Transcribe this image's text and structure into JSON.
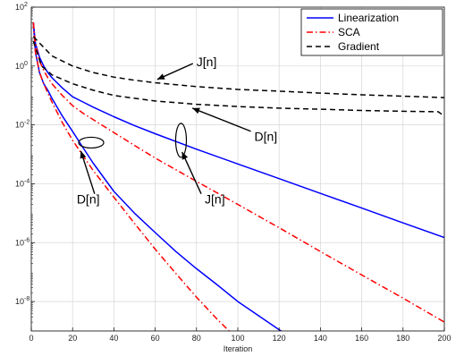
{
  "chart_data": {
    "type": "line",
    "xlabel": "Iteration",
    "ylabel": "",
    "yscale": "log",
    "xlim": [
      0,
      200
    ],
    "ylim": [
      1e-09,
      100
    ],
    "grid": true,
    "legend_position": "top-right",
    "x_ticks": [
      "0",
      "20",
      "40",
      "60",
      "80",
      "100",
      "120",
      "140",
      "160",
      "180",
      "200"
    ],
    "y_ticks": [
      {
        "value": 100,
        "mantissa": "10",
        "exponent": "2"
      },
      {
        "value": 1,
        "mantissa": "10",
        "exponent": "0"
      },
      {
        "value": 0.01,
        "mantissa": "10",
        "exponent": "-2"
      },
      {
        "value": 0.0001,
        "mantissa": "10",
        "exponent": "-4"
      },
      {
        "value": 1e-06,
        "mantissa": "10",
        "exponent": "-6"
      },
      {
        "value": 1e-08,
        "mantissa": "10",
        "exponent": "-8"
      }
    ],
    "series": [
      {
        "name": "Linearization",
        "color": "#0000ff",
        "dash": "solid",
        "curves": [
          {
            "x": [
              1,
              2,
              4,
              6,
              8,
              10,
              15,
              20,
              25,
              30,
              40,
              50,
              60,
              80,
              100,
              120,
              140,
              160,
              180,
              200
            ],
            "y": [
              30,
              6,
              2.0,
              1.0,
              0.6,
              0.4,
              0.18,
              0.09,
              0.06,
              0.04,
              0.019,
              0.0095,
              0.005,
              0.0015,
              0.00047,
              0.00015,
              4.7e-05,
              1.5e-05,
              4.7e-06,
              1.5e-06
            ]
          },
          {
            "x": [
              1,
              2,
              4,
              6,
              8,
              10,
              15,
              20,
              25,
              30,
              40,
              50,
              60,
              70,
              80,
              90,
              100,
              110,
              120,
              125
            ],
            "y": [
              30,
              3,
              0.6,
              0.25,
              0.15,
              0.08,
              0.02,
              0.006,
              0.0017,
              0.0005,
              5.5e-05,
              1e-05,
              2.2e-06,
              5e-07,
              1.3e-07,
              3.7e-08,
              1e-08,
              3.3e-09,
              1.1e-09,
              6.5e-10
            ]
          }
        ]
      },
      {
        "name": "SCA",
        "color": "#ff0000",
        "dash": "dash-dot",
        "curves": [
          {
            "x": [
              1,
              2,
              4,
              6,
              8,
              10,
              15,
              20,
              25,
              30,
              40,
              50,
              60,
              80,
              100,
              120,
              140,
              160,
              180,
              200
            ],
            "y": [
              30,
              6,
              1.5,
              0.7,
              0.4,
              0.25,
              0.1,
              0.045,
              0.025,
              0.015,
              0.0055,
              0.002,
              0.00075,
              0.00012,
              2e-05,
              3.2e-06,
              5e-07,
              8e-08,
              1.3e-08,
              2e-09
            ]
          },
          {
            "x": [
              1,
              2,
              4,
              6,
              8,
              10,
              15,
              20,
              25,
              30,
              40,
              50,
              60,
              70,
              80,
              90,
              98
            ],
            "y": [
              30,
              3,
              0.6,
              0.25,
              0.12,
              0.06,
              0.012,
              0.003,
              0.0009,
              0.00028,
              3.5e-05,
              4.5e-06,
              6e-07,
              9e-08,
              1.4e-08,
              2.5e-09,
              7e-10
            ]
          }
        ]
      },
      {
        "name": "Gradient",
        "color": "#000000",
        "dash": "dashed",
        "curves": [
          {
            "x": [
              1,
              10,
              20,
              30,
              40,
              50,
              60,
              80,
              100,
              120,
              140,
              160,
              180,
              200
            ],
            "y": [
              10,
              2.2,
              1.0,
              0.6,
              0.42,
              0.33,
              0.27,
              0.2,
              0.16,
              0.14,
              0.12,
              0.105,
              0.095,
              0.085
            ]
          },
          {
            "x": [
              1,
              5,
              10,
              20,
              30,
              40,
              50,
              60,
              80,
              100,
              120,
              140,
              160,
              180,
              197,
              200
            ],
            "y": [
              7,
              1.0,
              0.5,
              0.25,
              0.15,
              0.1,
              0.08,
              0.065,
              0.05,
              0.042,
              0.037,
              0.034,
              0.031,
              0.029,
              0.028,
              0.02
            ]
          }
        ]
      }
    ],
    "annotations": [
      {
        "label": "J[n]",
        "text_at": [
          80,
          1.4
        ],
        "arrow_to": [
          61,
          0.35
        ]
      },
      {
        "label": "D[n]",
        "text_at": [
          108,
          0.004
        ],
        "arrow_to": [
          78,
          0.037
        ]
      },
      {
        "label": "D[n]",
        "text_at": [
          22,
          3e-05
        ],
        "arrow_to": [
          24,
          0.0013
        ],
        "ellipse_at": [
          29,
          0.0025
        ]
      },
      {
        "label": "J[n]",
        "text_at": [
          84,
          3e-05
        ],
        "arrow_to": [
          73,
          0.0012
        ],
        "ellipse_at": [
          72.5,
          0.003
        ]
      }
    ]
  }
}
